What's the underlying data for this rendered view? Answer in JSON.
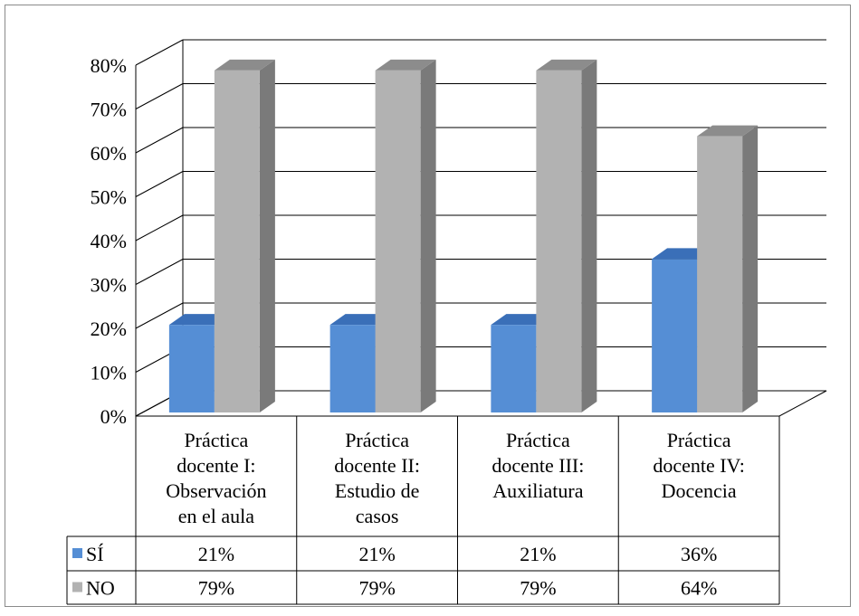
{
  "chart_data": {
    "type": "bar",
    "categories": [
      [
        "Práctica",
        "docente I:",
        "Observación",
        "en el aula"
      ],
      [
        "Práctica",
        "docente II:",
        "Estudio de",
        "casos"
      ],
      [
        "Práctica",
        "docente III:",
        "Auxiliatura"
      ],
      [
        "Práctica",
        "docente IV:",
        "Docencia"
      ]
    ],
    "series": [
      {
        "name": "SÍ",
        "values": [
          21,
          21,
          21,
          36
        ],
        "labels": [
          "21%",
          "21%",
          "21%",
          "36%"
        ],
        "color": "#558ed5",
        "top_color": "#3a6fb8",
        "side_color": "#3a6fb8"
      },
      {
        "name": "NO",
        "values": [
          79,
          79,
          79,
          64
        ],
        "labels": [
          "79%",
          "79%",
          "79%",
          "64%"
        ],
        "color": "#b2b2b2",
        "top_color": "#8c8c8c",
        "side_color": "#7a7a7a"
      }
    ],
    "ylim": [
      0,
      80
    ],
    "yticks": [
      "0%",
      "10%",
      "20%",
      "30%",
      "40%",
      "50%",
      "60%",
      "70%",
      "80%"
    ],
    "grid": true,
    "legend": "data-table",
    "style": "3d-clustered-column"
  }
}
